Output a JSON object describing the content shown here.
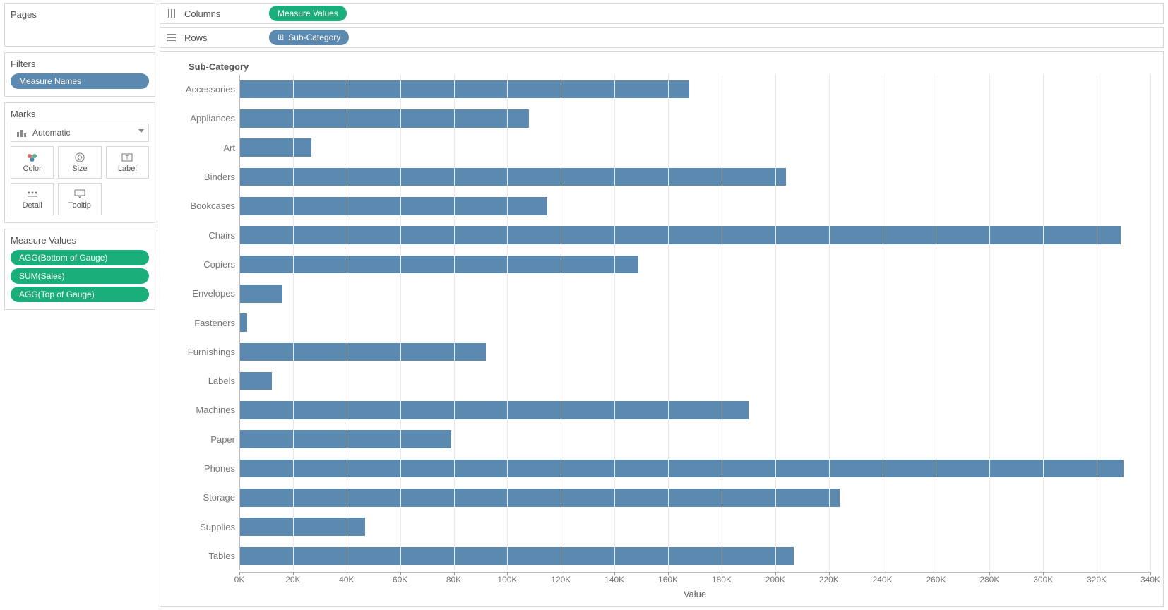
{
  "panels": {
    "pages_title": "Pages",
    "filters_title": "Filters",
    "filters_pill": "Measure Names",
    "marks_title": "Marks",
    "marks_type": "Automatic",
    "marks_cells": {
      "color": "Color",
      "size": "Size",
      "label": "Label",
      "detail": "Detail",
      "tooltip": "Tooltip"
    },
    "measure_values_title": "Measure Values",
    "measure_values_pills": [
      "AGG(Bottom of Gauge)",
      "SUM(Sales)",
      "AGG(Top of Gauge)"
    ]
  },
  "shelves": {
    "columns_label": "Columns",
    "columns_pill": "Measure Values",
    "rows_label": "Rows",
    "rows_pill": "Sub-Category"
  },
  "chart": {
    "type": "bar-horizontal",
    "title": "Sub-Category",
    "x_axis_title": "Value",
    "bar_color": "#5b89af",
    "grid_color": "#e9e9e9",
    "background": "#ffffff",
    "xmin": 0,
    "xmax": 340000,
    "xtick_step": 20000,
    "xtick_labels": [
      "0K",
      "20K",
      "40K",
      "60K",
      "80K",
      "100K",
      "120K",
      "140K",
      "160K",
      "180K",
      "200K",
      "220K",
      "240K",
      "260K",
      "280K",
      "300K",
      "320K",
      "340K"
    ],
    "categories": [
      "Accessories",
      "Appliances",
      "Art",
      "Binders",
      "Bookcases",
      "Chairs",
      "Copiers",
      "Envelopes",
      "Fasteners",
      "Furnishings",
      "Labels",
      "Machines",
      "Paper",
      "Phones",
      "Storage",
      "Supplies",
      "Tables"
    ],
    "values": [
      168000,
      108000,
      27000,
      204000,
      115000,
      329000,
      149000,
      16000,
      3000,
      92000,
      12000,
      190000,
      79000,
      330000,
      224000,
      47000,
      207000
    ],
    "bar_height_pct": 62,
    "label_fontsize": 13,
    "tick_fontsize": 12
  },
  "colors": {
    "pill_green": "#1aaf7a",
    "pill_blue": "#5b89af",
    "panel_border": "#d8d8d8"
  }
}
